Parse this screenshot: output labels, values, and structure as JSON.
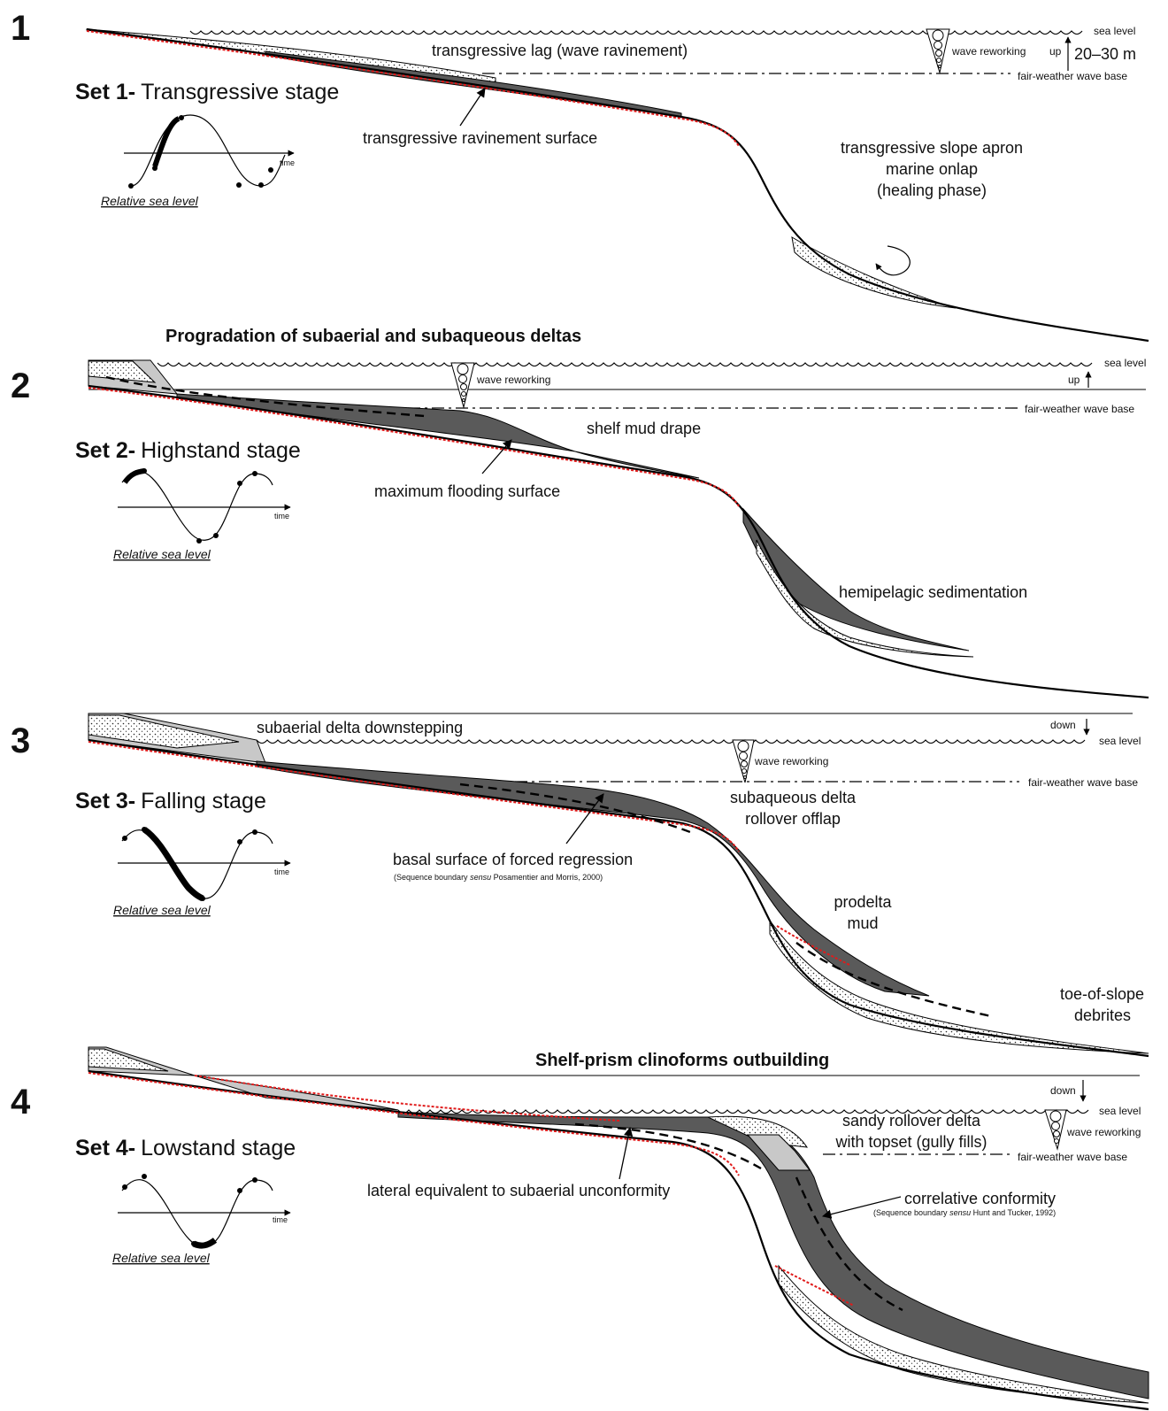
{
  "panels": [
    {
      "number": "1",
      "set_prefix": "Set 1-",
      "set_name": "Transgressive stage",
      "graph_axis": "time",
      "graph_caption": "Relative sea level",
      "labels": {
        "sea_level": "sea level",
        "lag": "transgressive lag (wave ravinement)",
        "wave": "wave reworking",
        "up": "up",
        "range": "20–30 m",
        "fwwb": "fair-weather wave base",
        "ravinement": "transgressive ravinement surface",
        "apron_1": "transgressive slope apron",
        "apron_2": "marine onlap",
        "apron_3": "(healing phase)"
      }
    },
    {
      "number": "2",
      "heading": "Progradation of subaerial and subaqueous deltas",
      "set_prefix": "Set 2-",
      "set_name": "Highstand stage",
      "graph_axis": "time",
      "graph_caption": "Relative sea level",
      "labels": {
        "sea_level": "sea level",
        "wave": "wave reworking",
        "up": "up",
        "fwwb": "fair-weather wave base",
        "drape": "shelf mud drape",
        "mfs": "maximum flooding surface",
        "hemi": "hemipelagic sedimentation"
      }
    },
    {
      "number": "3",
      "set_prefix": "Set 3-",
      "set_name": "Falling stage",
      "graph_axis": "time",
      "graph_caption": "Relative sea level",
      "labels": {
        "downstep": "subaerial delta downstepping",
        "down": "down",
        "sea_level": "sea level",
        "wave": "wave reworking",
        "fwwb": "fair-weather wave base",
        "offlap_1": "subaqueous delta",
        "offlap_2": "rollover offlap",
        "bsfr": "basal surface of forced regression",
        "bsfr_ref_a": "(Sequence boundary ",
        "bsfr_ref_i": "sensu",
        "bsfr_ref_b": " Posamentier and Morris, 2000)",
        "prodelta_1": "prodelta",
        "prodelta_2": "mud",
        "toe_1": "toe-of-slope",
        "toe_2": "debrites"
      }
    },
    {
      "number": "4",
      "heading": "Shelf-prism clinoforms outbuilding",
      "set_prefix": "Set 4-",
      "set_name": "Lowstand stage",
      "graph_axis": "time",
      "graph_caption": "Relative sea level",
      "labels": {
        "down": "down",
        "sea_level": "sea level",
        "rollover_1": "sandy rollover delta",
        "rollover_2": "with topset (gully fills)",
        "wave": "wave reworking",
        "fwwb": "fair-weather wave base",
        "lateral": "lateral equivalent to subaerial unconformity",
        "cc": "correlative conformity",
        "cc_ref_a": "(Sequence boundary ",
        "cc_ref_i": "sensu",
        "cc_ref_b": " Hunt and Tucker, 1992)"
      }
    }
  ]
}
